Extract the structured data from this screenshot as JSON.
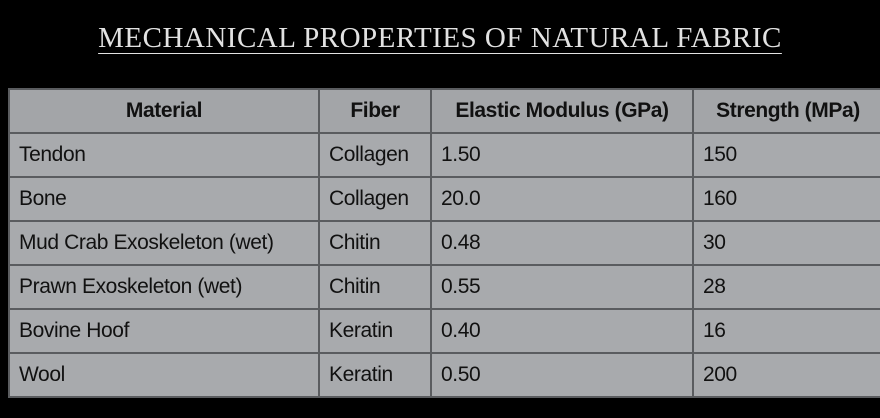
{
  "header": {
    "title": "MECHANICAL PROPERTIES OF NATURAL FABRIC"
  },
  "table": {
    "columns": [
      "Material",
      "Fiber",
      "Elastic Modulus (GPa)",
      "Strength (MPa)"
    ],
    "rows": [
      [
        "Tendon",
        "Collagen",
        "1.50",
        "150"
      ],
      [
        "Bone",
        "Collagen",
        "20.0",
        "160"
      ],
      [
        "Mud Crab Exoskeleton (wet)",
        "Chitin",
        "0.48",
        "30"
      ],
      [
        "Prawn Exoskeleton (wet)",
        "Chitin",
        "0.55",
        "28"
      ],
      [
        "Bovine Hoof",
        "Keratin",
        "0.40",
        "16"
      ],
      [
        "Wool",
        "Keratin",
        "0.50",
        "200"
      ]
    ]
  }
}
